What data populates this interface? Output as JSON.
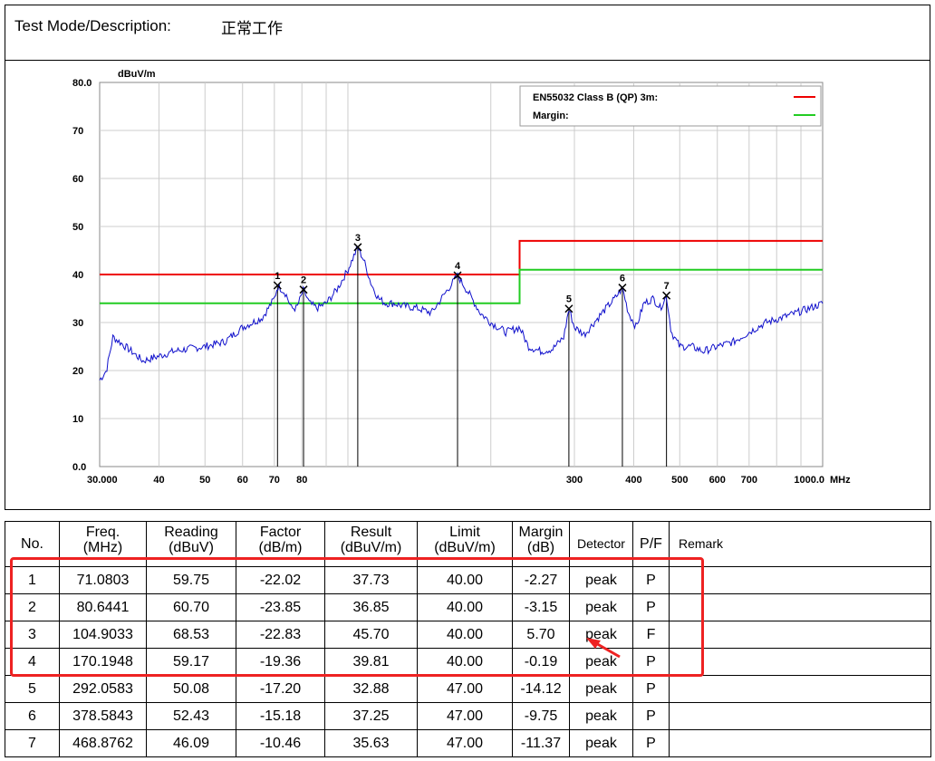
{
  "header": {
    "label": "Test Mode/Description:",
    "value": "正常工作"
  },
  "chart_data": {
    "type": "line",
    "ylabel": "dBuV/m",
    "xlabel": "MHz",
    "ylim": [
      0,
      80
    ],
    "xlim": [
      30,
      1000
    ],
    "xscale": "log",
    "grid": true,
    "legend_placement": "top-right",
    "y_ticks": [
      "80.0",
      "70",
      "60",
      "50",
      "40",
      "30",
      "20",
      "10",
      "0.0"
    ],
    "y_tick_values": [
      80,
      70,
      60,
      50,
      40,
      30,
      20,
      10,
      0
    ],
    "x_ticks": [
      "30.000",
      "40",
      "50",
      "60",
      "70",
      "80",
      "300",
      "400",
      "500",
      "600",
      "700",
      "1000.0"
    ],
    "x_tick_values": [
      30,
      40,
      50,
      60,
      70,
      80,
      300,
      400,
      500,
      600,
      700,
      1000
    ],
    "legend": [
      {
        "name": "EN55032 Class B (QP)  3m:",
        "color": "#ee0000"
      },
      {
        "name": "Margin:",
        "color": "#22cc22"
      }
    ],
    "limit_line": {
      "color": "#ee0000",
      "x": [
        30,
        230,
        230,
        1000
      ],
      "y": [
        40,
        40,
        47,
        47
      ]
    },
    "margin_line": {
      "color": "#22cc22",
      "x": [
        30,
        230,
        230,
        1000
      ],
      "y": [
        34,
        34,
        41,
        41
      ]
    },
    "trace": {
      "color": "#1010cc",
      "x": [
        30,
        31,
        32,
        33,
        35,
        37,
        40,
        43,
        46,
        50,
        55,
        60,
        63,
        66,
        68,
        70,
        71.08,
        72.5,
        74,
        76,
        78,
        80.64,
        83,
        86,
        90,
        95,
        100,
        104.9,
        108,
        112,
        116,
        120,
        125,
        130,
        140,
        150,
        160,
        170.19,
        180,
        190,
        200,
        215,
        230,
        240,
        255,
        270,
        285,
        292.06,
        300,
        315,
        330,
        350,
        365,
        378.58,
        390,
        405,
        420,
        440,
        455,
        468.88,
        480,
        500,
        530,
        560,
        600,
        650,
        700,
        760,
        820,
        880,
        940,
        1000
      ],
      "y": [
        18,
        20,
        27,
        26,
        24,
        22,
        23,
        24,
        24.5,
        25,
        26,
        29,
        30,
        31,
        33,
        35,
        37.5,
        37,
        36,
        33,
        33,
        36.8,
        34,
        33,
        34,
        37,
        41,
        45.7,
        43,
        38,
        35,
        34,
        34,
        33.5,
        33,
        32,
        36,
        39.8,
        36,
        32,
        30,
        28,
        29,
        25,
        24,
        24.5,
        27,
        32.9,
        29,
        27.5,
        30,
        33,
        35,
        37.2,
        32,
        29,
        34,
        35,
        33,
        35.6,
        28,
        25,
        25,
        24,
        25,
        26,
        28,
        30,
        31,
        32,
        33,
        34
      ]
    },
    "markers": [
      {
        "label": "1",
        "freq": 71.0803,
        "level": 37.73
      },
      {
        "label": "2",
        "freq": 80.6441,
        "level": 36.85
      },
      {
        "label": "3",
        "freq": 104.9033,
        "level": 45.7
      },
      {
        "label": "4",
        "freq": 170.1948,
        "level": 39.81
      },
      {
        "label": "5",
        "freq": 292.0583,
        "level": 32.88
      },
      {
        "label": "6",
        "freq": 378.5843,
        "level": 37.25
      },
      {
        "label": "7",
        "freq": 468.8762,
        "level": 35.63
      }
    ]
  },
  "table": {
    "columns": [
      {
        "line1": "No.",
        "line2": ""
      },
      {
        "line1": "Freq.",
        "line2": "(MHz)"
      },
      {
        "line1": "Reading",
        "line2": "(dBuV)"
      },
      {
        "line1": "Factor",
        "line2": "(dB/m)"
      },
      {
        "line1": "Result",
        "line2": "(dBuV/m)"
      },
      {
        "line1": "Limit",
        "line2": "(dBuV/m)"
      },
      {
        "line1": "Margin",
        "line2": "(dB)"
      },
      {
        "line1": "Detector",
        "line2": ""
      },
      {
        "line1": "P/F",
        "line2": ""
      },
      {
        "line1": "Remark",
        "line2": ""
      }
    ],
    "rows": [
      [
        "1",
        "71.0803",
        "59.75",
        "-22.02",
        "37.73",
        "40.00",
        "-2.27",
        "peak",
        "P",
        ""
      ],
      [
        "2",
        "80.6441",
        "60.70",
        "-23.85",
        "36.85",
        "40.00",
        "-3.15",
        "peak",
        "P",
        ""
      ],
      [
        "3",
        "104.9033",
        "68.53",
        "-22.83",
        "45.70",
        "40.00",
        "5.70",
        "peak",
        "F",
        ""
      ],
      [
        "4",
        "170.1948",
        "59.17",
        "-19.36",
        "39.81",
        "40.00",
        "-0.19",
        "peak",
        "P",
        ""
      ],
      [
        "5",
        "292.0583",
        "50.08",
        "-17.20",
        "32.88",
        "47.00",
        "-14.12",
        "peak",
        "P",
        ""
      ],
      [
        "6",
        "378.5843",
        "52.43",
        "-15.18",
        "37.25",
        "47.00",
        "-9.75",
        "peak",
        "P",
        ""
      ],
      [
        "7",
        "468.8762",
        "46.09",
        "-10.46",
        "35.63",
        "47.00",
        "-11.37",
        "peak",
        "P",
        ""
      ]
    ]
  },
  "annotation": {
    "highlight_color": "#ee2222"
  }
}
